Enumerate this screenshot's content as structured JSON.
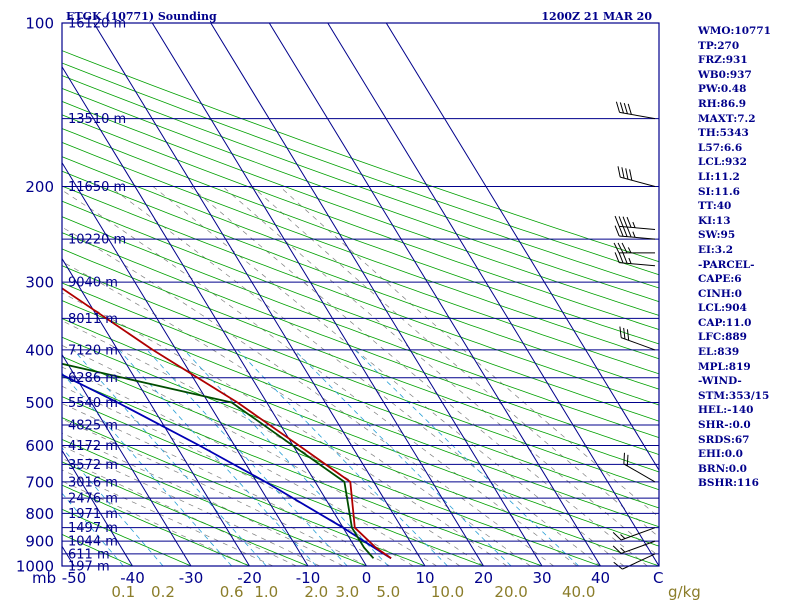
{
  "title": "ETGK (10771) Sounding",
  "time_label": "1200Z 21 MAR 20",
  "chart_data": {
    "type": "skew-t",
    "pressure_axis": {
      "unit_label": "mb",
      "ticks": [
        100,
        200,
        300,
        400,
        500,
        600,
        700,
        800,
        900,
        1000
      ],
      "range": [
        100,
        1000
      ],
      "log": true
    },
    "temperature_axis": {
      "unit_label": "C",
      "ticks": [
        -50,
        -40,
        -30,
        -20,
        -10,
        0,
        10,
        20,
        30,
        40
      ],
      "range": [
        -50,
        50
      ]
    },
    "mixing_ratio_axis": {
      "unit_label": "g/kg",
      "ticks": [
        "0.1",
        "0.2",
        "0.6",
        "1.0",
        "2.0",
        "3.0",
        "5.0",
        "10.0",
        "20.0",
        "40.0"
      ],
      "values": [
        0.1,
        0.2,
        0.6,
        1.0,
        2.0,
        3.0,
        5.0,
        10.0,
        20.0,
        40.0
      ]
    },
    "heights": [
      {
        "p": 100,
        "label": "16120 m"
      },
      {
        "p": 150,
        "label": "13510 m"
      },
      {
        "p": 200,
        "label": "11650 m"
      },
      {
        "p": 250,
        "label": "10220 m"
      },
      {
        "p": 300,
        "label": "9040 m"
      },
      {
        "p": 350,
        "label": "8011 m"
      },
      {
        "p": 400,
        "label": "7120 m"
      },
      {
        "p": 450,
        "label": "6286 m"
      },
      {
        "p": 500,
        "label": "5540 m"
      },
      {
        "p": 550,
        "label": "4825 m"
      },
      {
        "p": 600,
        "label": "4172 m"
      },
      {
        "p": 650,
        "label": "3572 m"
      },
      {
        "p": 700,
        "label": "3016 m"
      },
      {
        "p": 750,
        "label": "2476 m"
      },
      {
        "p": 800,
        "label": "1971 m"
      },
      {
        "p": 850,
        "label": "1497 m"
      },
      {
        "p": 900,
        "label": "1044 m"
      },
      {
        "p": 950,
        "label": "611 m"
      },
      {
        "p": 1000,
        "label": "197 m"
      }
    ],
    "temperature_profile": {
      "color": "#b00000",
      "points": [
        {
          "p": 968,
          "t": 5.0
        },
        {
          "p": 925,
          "t": 3.5
        },
        {
          "p": 850,
          "t": 2.0
        },
        {
          "p": 700,
          "t": 6.0
        },
        {
          "p": 600,
          "t": 1.0
        },
        {
          "p": 500,
          "t": -5.0
        },
        {
          "p": 400,
          "t": -14.0
        },
        {
          "p": 300,
          "t": -24.0
        },
        {
          "p": 285,
          "t": -25.5
        },
        {
          "p": 250,
          "t": -24.5
        },
        {
          "p": 200,
          "t": -15.0
        },
        {
          "p": 150,
          "t": -9.0
        },
        {
          "p": 100,
          "t": -5.5
        }
      ]
    },
    "dewpoint_profile": {
      "color": "#004d00",
      "points": [
        {
          "p": 968,
          "t": 2.0
        },
        {
          "p": 925,
          "t": 1.5
        },
        {
          "p": 850,
          "t": 1.5
        },
        {
          "p": 700,
          "t": 5.0
        },
        {
          "p": 500,
          "t": -6.0
        },
        {
          "p": 400,
          "t": -40.0
        },
        {
          "p": 300,
          "t": -43.5
        },
        {
          "p": 250,
          "t": -48.0
        },
        {
          "p": 200,
          "t": -58.0
        },
        {
          "p": 150,
          "t": -67.0
        },
        {
          "p": 100,
          "t": -80.0
        }
      ]
    },
    "parcel_path": {
      "color": "#0000b4",
      "points": [
        {
          "p": 968,
          "t": 5.0
        },
        {
          "p": 932,
          "t": 3.5
        },
        {
          "p": 850,
          "t": 0.0
        },
        {
          "p": 700,
          "t": -8.5
        },
        {
          "p": 600,
          "t": -16.0
        },
        {
          "p": 500,
          "t": -25.5
        },
        {
          "p": 400,
          "t": -38.0
        },
        {
          "p": 300,
          "t": -54.0
        },
        {
          "p": 250,
          "t": -63.0
        },
        {
          "p": 200,
          "t": -73.0
        },
        {
          "p": 150,
          "t": -85.0
        },
        {
          "p": 100,
          "t": -99.0
        }
      ]
    },
    "wind_barbs": [
      {
        "p": 150,
        "dir": 280,
        "kt": 40
      },
      {
        "p": 200,
        "dir": 285,
        "kt": 40
      },
      {
        "p": 240,
        "dir": 275,
        "kt": 45
      },
      {
        "p": 250,
        "dir": 275,
        "kt": 45
      },
      {
        "p": 265,
        "dir": 270,
        "kt": 35
      },
      {
        "p": 280,
        "dir": 275,
        "kt": 35
      },
      {
        "p": 400,
        "dir": 290,
        "kt": 30
      },
      {
        "p": 700,
        "dir": 300,
        "kt": 20
      },
      {
        "p": 850,
        "dir": 250,
        "kt": 15
      },
      {
        "p": 900,
        "dir": 250,
        "kt": 15
      },
      {
        "p": 950,
        "dir": 245,
        "kt": 10
      }
    ],
    "colors": {
      "isobars": "#00008b",
      "isotherms": "#00008b",
      "dry_adiabats": "#00a000",
      "moist_adiabats": "#808080",
      "mixing_ratio": "#2aa0d6",
      "mixing_ratio_labels": "#8b7d2a",
      "frame": "#00008b"
    }
  },
  "indices": [
    "WMO:10771",
    "TP:270",
    "FRZ:931",
    "WB0:937",
    "PW:0.48",
    "RH:86.9",
    "MAXT:7.2",
    "TH:5343",
    "L57:6.6",
    "LCL:932",
    "LI:11.2",
    "SI:11.6",
    "TT:40",
    "KI:13",
    "SW:95",
    "EI:3.2",
    "-PARCEL-",
    "CAPE:6",
    "CINH:0",
    "LCL:904",
    "CAP:11.0",
    "LFC:889",
    "EL:839",
    "MPL:819",
    "-WIND-",
    "STM:353/15",
    "HEL:-140",
    "SHR-:0.0",
    "SRDS:67",
    "EHI:0.0",
    "BRN:0.0",
    "BSHR:116"
  ]
}
